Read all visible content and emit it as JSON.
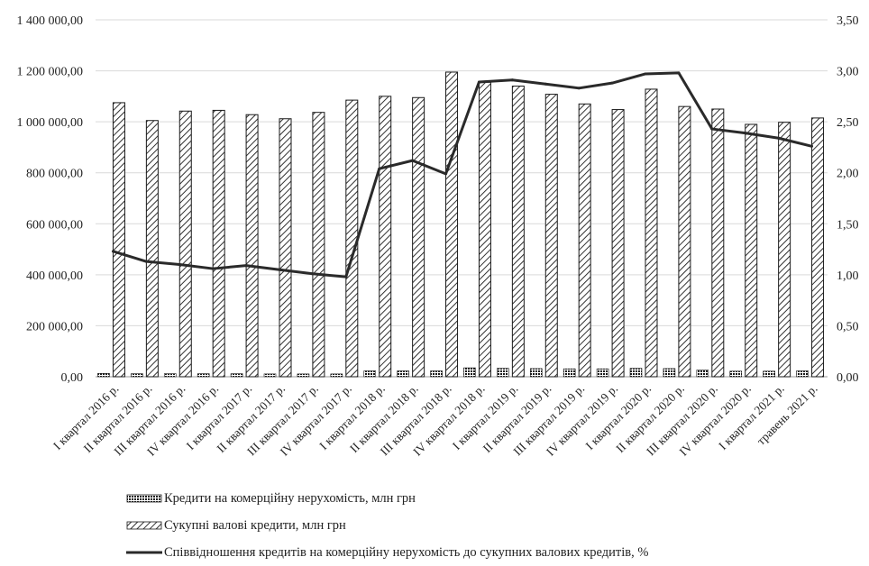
{
  "chart_data": {
    "type": "bar",
    "categories": [
      "I квартал 2016 р.",
      "II квартал 2016 р.",
      "III квартал 2016 р.",
      "IV квартал 2016 р.",
      "I квартал 2017 р.",
      "II квартал 2017 р.",
      "III квартал 2017 р.",
      "IV квартал 2017 р.",
      "I квартал 2018 р.",
      "II квартал 2018 р.",
      "III квартал 2018 р.",
      "IV квартал 2018 р.",
      "I квартал 2019 р.",
      "II квартал 2019 р.",
      "III квартал 2019 р.",
      "IV квартал 2019 р.",
      "I квартал 2020 р.",
      "II квартал 2020 р.",
      "III квартал 2020 р.",
      "IV квартал 2020 р.",
      "I квартал 2021 р.",
      "травень 2021 р."
    ],
    "series": [
      {
        "name": "Кредити на комерційну нерухомість, млн грн",
        "kind": "bar",
        "pattern": "crosshatch",
        "axis": "left",
        "values": [
          13000,
          12000,
          12000,
          12000,
          12000,
          11000,
          11000,
          11000,
          23000,
          23000,
          23000,
          35000,
          33000,
          32000,
          31000,
          31000,
          33000,
          32000,
          26000,
          22000,
          22000,
          23000
        ]
      },
      {
        "name": "Сукупні валові кредити, млн грн",
        "kind": "bar",
        "pattern": "diagonal",
        "axis": "left",
        "values": [
          1075000,
          1005000,
          1042000,
          1045000,
          1028000,
          1012000,
          1037000,
          1085000,
          1100000,
          1095000,
          1195000,
          1155000,
          1140000,
          1108000,
          1070000,
          1048000,
          1128000,
          1060000,
          1050000,
          990000,
          998000,
          1015000
        ]
      },
      {
        "name": "Співвідношення кредитів на комерційну нерухомість до сукупних валових кредитів, %",
        "kind": "line",
        "axis": "right",
        "values": [
          1.23,
          1.13,
          1.1,
          1.06,
          1.09,
          1.05,
          1.01,
          0.98,
          2.04,
          2.12,
          1.99,
          2.89,
          2.91,
          2.87,
          2.83,
          2.88,
          2.97,
          2.98,
          2.43,
          2.39,
          2.34,
          2.26
        ]
      }
    ],
    "y_left": {
      "ylim": [
        0,
        1400000
      ],
      "ticks": [
        "0,00",
        "200 000,00",
        "400 000,00",
        "600 000,00",
        "800 000,00",
        "1 000 000,00",
        "1 200 000,00",
        "1 400 000,00"
      ]
    },
    "y_right": {
      "ylim": [
        0,
        3.5
      ],
      "ticks": [
        "0,00",
        "0,50",
        "1,00",
        "1,50",
        "2,00",
        "2,50",
        "3,00",
        "3,50"
      ]
    },
    "grid": true,
    "legend_position": "bottom",
    "colors": {
      "bar_fill": "#ffffff",
      "bar_stroke": "#1a1a1a",
      "line": "#2a2a2a",
      "grid": "#d9d9d9",
      "text": "#222222"
    }
  }
}
